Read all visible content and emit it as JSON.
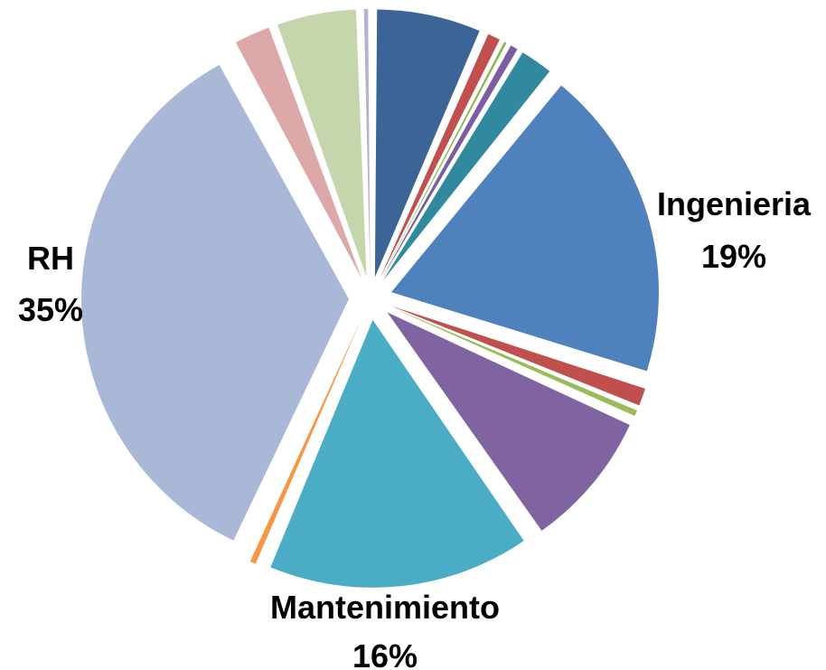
{
  "chart_data": {
    "type": "pie",
    "title": "",
    "exploded": true,
    "legend": "none",
    "slices": [
      {
        "value": 6.5,
        "color": "#3c6496",
        "label": "",
        "pct": ""
      },
      {
        "value": 1.0,
        "color": "#c0504d",
        "label": "",
        "pct": ""
      },
      {
        "value": 0.4,
        "color": "#8fb84e",
        "label": "",
        "pct": ""
      },
      {
        "value": 0.7,
        "color": "#7b5ea1",
        "label": "",
        "pct": ""
      },
      {
        "value": 2.2,
        "color": "#31899f",
        "label": "",
        "pct": ""
      },
      {
        "value": 19,
        "color": "#4f81bd",
        "label": "Ingenieria",
        "pct": "19%"
      },
      {
        "value": 1.3,
        "color": "#c0504d",
        "label": "",
        "pct": ""
      },
      {
        "value": 0.6,
        "color": "#9bbb59",
        "label": "",
        "pct": ""
      },
      {
        "value": 8.5,
        "color": "#8064a2",
        "label": "",
        "pct": ""
      },
      {
        "value": 16,
        "color": "#4bacc6",
        "label": "Mantenimiento",
        "pct": "16%"
      },
      {
        "value": 0.6,
        "color": "#f79646",
        "label": "",
        "pct": ""
      },
      {
        "value": 35,
        "color": "#a9b8d6",
        "label": "RH",
        "pct": "35%"
      },
      {
        "value": 2.4,
        "color": "#dca9a8",
        "label": "",
        "pct": ""
      },
      {
        "value": 5.0,
        "color": "#c5d6ad",
        "label": "",
        "pct": ""
      },
      {
        "value": 0.5,
        "color": "#bcb0cf",
        "label": "",
        "pct": ""
      }
    ]
  }
}
